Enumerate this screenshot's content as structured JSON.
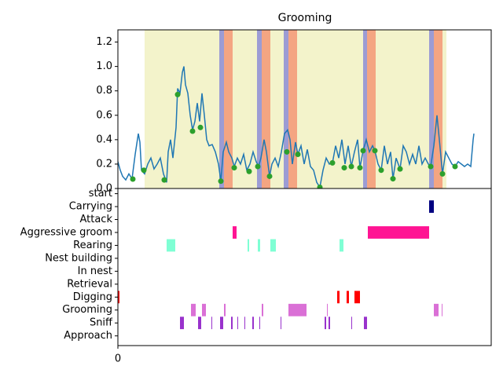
{
  "chart_data": [
    {
      "type": "line",
      "title": "Grooming",
      "color": "#1f77b4",
      "x": [
        0,
        3,
        6,
        10,
        14,
        18,
        22,
        26,
        28,
        30,
        34,
        38,
        42,
        46,
        50,
        54,
        58,
        62,
        64,
        67,
        70,
        74,
        76,
        79,
        82,
        84,
        86,
        89,
        92,
        95,
        98,
        101,
        104,
        107,
        110,
        113,
        116,
        120,
        124,
        128,
        131,
        134,
        138,
        141,
        145,
        148,
        152,
        156,
        160,
        164,
        168,
        172,
        176,
        179,
        182,
        186,
        189,
        193,
        196,
        200,
        204,
        208,
        212,
        216,
        219,
        222,
        226,
        229,
        233,
        237,
        241,
        245,
        249,
        253,
        257,
        261,
        265,
        269,
        273,
        277,
        281,
        285,
        289,
        293,
        297,
        301,
        305,
        308,
        312,
        316,
        320,
        324,
        327,
        331,
        335,
        339,
        343,
        347,
        350,
        354,
        359,
        363,
        367,
        371,
        375,
        379,
        383,
        387,
        391,
        395,
        398,
        402,
        406,
        409,
        413,
        417,
        421,
        425,
        429,
        433,
        437,
        441,
        445,
        449,
        452,
        453
      ],
      "values": [
        0.22,
        0.15,
        0.1,
        0.07,
        0.12,
        0.08,
        0.28,
        0.45,
        0.38,
        0.15,
        0.12,
        0.2,
        0.25,
        0.16,
        0.2,
        0.25,
        0.12,
        0.05,
        0.3,
        0.4,
        0.25,
        0.5,
        0.82,
        0.78,
        0.95,
        1.0,
        0.85,
        0.78,
        0.6,
        0.48,
        0.55,
        0.7,
        0.55,
        0.78,
        0.6,
        0.4,
        0.35,
        0.36,
        0.3,
        0.2,
        0.06,
        0.3,
        0.38,
        0.3,
        0.25,
        0.18,
        0.25,
        0.2,
        0.28,
        0.15,
        0.2,
        0.3,
        0.22,
        0.18,
        0.25,
        0.4,
        0.3,
        0.1,
        0.2,
        0.25,
        0.18,
        0.3,
        0.45,
        0.48,
        0.4,
        0.2,
        0.38,
        0.28,
        0.35,
        0.2,
        0.32,
        0.18,
        0.15,
        0.05,
        0.01,
        0.15,
        0.25,
        0.2,
        0.21,
        0.35,
        0.25,
        0.4,
        0.2,
        0.35,
        0.18,
        0.3,
        0.4,
        0.17,
        0.31,
        0.4,
        0.3,
        0.35,
        0.31,
        0.2,
        0.15,
        0.35,
        0.2,
        0.3,
        0.08,
        0.25,
        0.16,
        0.35,
        0.3,
        0.2,
        0.28,
        0.2,
        0.35,
        0.2,
        0.25,
        0.2,
        0.18,
        0.35,
        0.6,
        0.4,
        0.12,
        0.3,
        0.25,
        0.2,
        0.18,
        0.22,
        0.2,
        0.18,
        0.2,
        0.18,
        0.4,
        0.45
      ],
      "points": {
        "color": "#2ca02c",
        "x": [
          19,
          33,
          59,
          76,
          95,
          105,
          131,
          148,
          167,
          178,
          193,
          215,
          229,
          257,
          273,
          288,
          297,
          308,
          312,
          327,
          335,
          350,
          359,
          398,
          413,
          429
        ],
        "values": [
          0.077,
          0.15,
          0.07,
          0.77,
          0.47,
          0.5,
          0.06,
          0.17,
          0.14,
          0.18,
          0.1,
          0.3,
          0.28,
          0.01,
          0.21,
          0.17,
          0.18,
          0.17,
          0.31,
          0.31,
          0.15,
          0.08,
          0.16,
          0.18,
          0.12,
          0.18
        ]
      },
      "spans": [
        {
          "color": "#f3f3cb",
          "ranges": [
            [
              34,
              418
            ]
          ]
        },
        {
          "color": "#9c9cd4",
          "ranges": [
            [
              129,
              135
            ],
            [
              177,
              183
            ],
            [
              211,
              217
            ],
            [
              312,
              317
            ],
            [
              396,
              402
            ]
          ]
        },
        {
          "color": "#f4a582",
          "ranges": [
            [
              135,
              146
            ],
            [
              183,
              194
            ],
            [
              217,
              228
            ],
            [
              317,
              328
            ],
            [
              402,
              413
            ]
          ]
        }
      ],
      "xlim": [
        0,
        475
      ],
      "ylim": [
        0,
        1.3
      ],
      "yticks": [
        {
          "value": 0,
          "label": "0.0"
        },
        {
          "value": 0.2,
          "label": "0.2"
        },
        {
          "value": 0.4,
          "label": "0.4"
        },
        {
          "value": 0.6,
          "label": "0.6"
        },
        {
          "value": 0.8,
          "label": "0.8"
        },
        {
          "value": 1.0,
          "label": "1.0"
        },
        {
          "value": 1.2,
          "label": "1.2"
        }
      ]
    },
    {
      "type": "timeline",
      "xlim": [
        0,
        475
      ],
      "xticks": [
        0
      ],
      "ylim": [
        -0.75,
        11.4
      ],
      "rows": [
        {
          "category": "start",
          "color": "#000000",
          "spans": []
        },
        {
          "category": "Carrying",
          "color": "#000080",
          "spans": [
            [
              396,
              402
            ]
          ]
        },
        {
          "category": "Attack",
          "color": "#000000",
          "spans": []
        },
        {
          "category": "Aggressive groom",
          "color": "#ff1493",
          "spans": [
            [
              146,
              151
            ],
            [
              318,
              396
            ]
          ]
        },
        {
          "category": "Rearing",
          "color": "#7fffd4",
          "spans": [
            [
              62,
              73
            ],
            [
              165,
              167
            ],
            [
              178,
              181
            ],
            [
              194,
              201
            ],
            [
              282,
              287
            ]
          ]
        },
        {
          "category": "Nest building",
          "color": "#000000",
          "spans": []
        },
        {
          "category": "In nest",
          "color": "#000000",
          "spans": []
        },
        {
          "category": "Retrieval",
          "color": "#000000",
          "spans": []
        },
        {
          "category": "Digging",
          "color": "#ff0000",
          "spans": [
            [
              0,
              2
            ],
            [
              279,
              282
            ],
            [
              291,
              294
            ],
            [
              301,
              308
            ]
          ]
        },
        {
          "category": "Grooming",
          "color": "#da70d6",
          "spans": [
            [
              93,
              99
            ],
            [
              107,
              112
            ],
            [
              135,
              137
            ],
            [
              183,
              185
            ],
            [
              217,
              240
            ],
            [
              266,
              267
            ],
            [
              402,
              408
            ],
            [
              412,
              413
            ]
          ]
        },
        {
          "category": "Sniff",
          "color": "#9932cc",
          "spans": [
            [
              79,
              84
            ],
            [
              102,
              106
            ],
            [
              119,
              120
            ],
            [
              130,
              134
            ],
            [
              144,
              146
            ],
            [
              152,
              153
            ],
            [
              161,
              162
            ],
            [
              171,
              173
            ],
            [
              180,
              181
            ],
            [
              207,
              208
            ],
            [
              263,
              265
            ],
            [
              268,
              270
            ],
            [
              297,
              298
            ],
            [
              313,
              317
            ]
          ]
        },
        {
          "category": "Approach",
          "color": "#000000",
          "spans": []
        }
      ]
    }
  ]
}
